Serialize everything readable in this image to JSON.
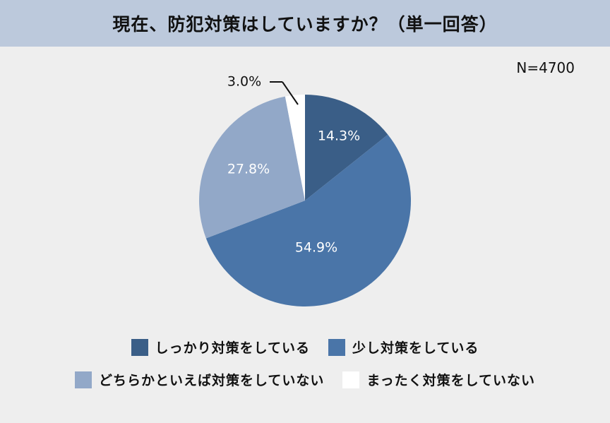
{
  "header": {
    "title": "現在、防犯対策はしていますか？（単一回答）"
  },
  "sample": {
    "label": "N=4700"
  },
  "chart_data": {
    "type": "pie",
    "title": "現在、防犯対策はしていますか？（単一回答）",
    "n": 4700,
    "categories": [
      "しっかり対策をしている",
      "少し対策をしている",
      "どちらかといえば対策をしていない",
      "まったく対策をしていない"
    ],
    "values": [
      14.3,
      54.9,
      27.8,
      3.0
    ],
    "labels": [
      "14.3%",
      "54.9%",
      "27.8%",
      "3.0%"
    ],
    "colors": [
      "#3a5e87",
      "#4a75a8",
      "#92a8c8",
      "#ffffff"
    ],
    "start_angle": "12 o'clock, clockwise",
    "legend_position": "bottom"
  },
  "legend": {
    "items": [
      {
        "label": "しっかり対策をしている",
        "color": "#3a5e87"
      },
      {
        "label": "少し対策をしている",
        "color": "#4a75a8"
      },
      {
        "label": "どちらかといえば対策をしていない",
        "color": "#92a8c8"
      },
      {
        "label": "まったく対策をしていない",
        "color": "#ffffff"
      }
    ]
  }
}
